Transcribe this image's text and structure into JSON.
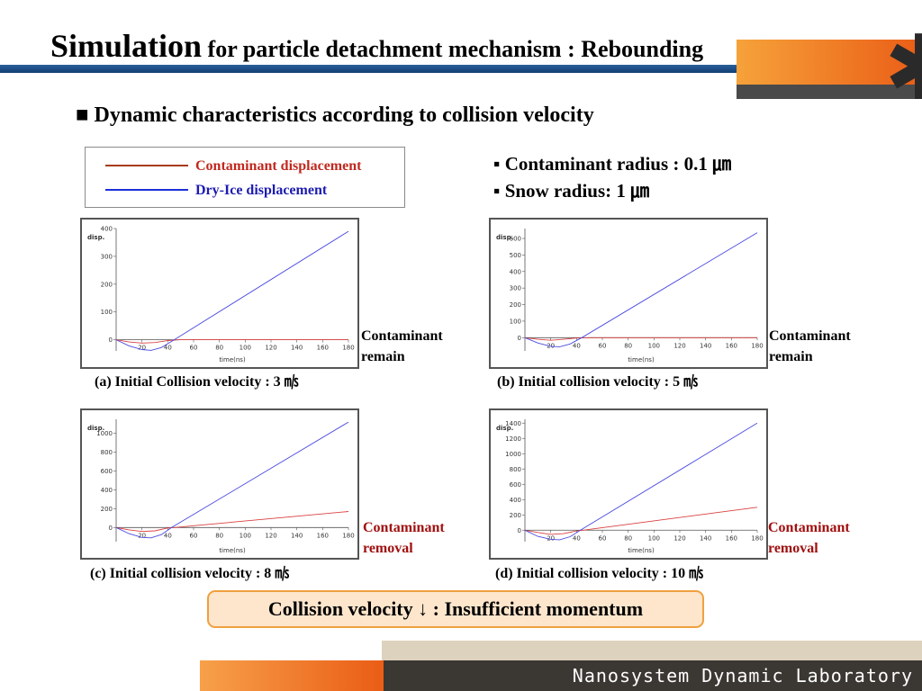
{
  "title": {
    "main": "Simulation",
    "rest": " for particle detachment mechanism : Rebounding"
  },
  "logo": {
    "symbol": "✱"
  },
  "subheading": "■ Dynamic characteristics according to collision velocity",
  "legend": {
    "items": [
      {
        "label": "Contaminant displacement",
        "color": "#c0281e",
        "line_color": "#a83a14"
      },
      {
        "label": "Dry-Ice displacement",
        "color": "#1c1cb0",
        "line_color": "#1c2fd8"
      }
    ]
  },
  "params": {
    "contaminant": "▪ Contaminant radius : 0.1 ㎛",
    "snow": "▪ Snow radius: 1 ㎛"
  },
  "plots": [
    {
      "caption": "(a) Initial Collision velocity : 3 ㎧",
      "outcome_line1": "Contaminant",
      "outcome_line2": "remain"
    },
    {
      "caption": "(b) Initial collision velocity : 5 ㎧",
      "outcome_line1": "Contaminant",
      "outcome_line2": "remain"
    },
    {
      "caption": "(c) Initial collision velocity : 8 ㎧",
      "outcome_line1": "Contaminant",
      "outcome_line2": "removal"
    },
    {
      "caption": "(d) Initial collision velocity : 10 ㎧",
      "outcome_line1": "Contaminant",
      "outcome_line2": "removal"
    }
  ],
  "chart_data": [
    {
      "type": "line",
      "ylabel": "disp.",
      "xlabel": "time(ns)",
      "xlim": [
        0,
        180
      ],
      "ylim": [
        -40,
        400
      ],
      "xticks": [
        20,
        40,
        60,
        80,
        100,
        120,
        140,
        160,
        180
      ],
      "yticks": [
        0,
        100,
        200,
        300,
        400
      ],
      "series": [
        {
          "color": "#d94040",
          "points": [
            [
              0,
              0
            ],
            [
              10,
              -8
            ],
            [
              20,
              -12
            ],
            [
              30,
              -10
            ],
            [
              40,
              -3
            ],
            [
              50,
              0
            ],
            [
              180,
              0
            ]
          ]
        },
        {
          "color": "#4a4ae0",
          "points": [
            [
              0,
              0
            ],
            [
              10,
              -22
            ],
            [
              20,
              -35
            ],
            [
              27,
              -38
            ],
            [
              35,
              -28
            ],
            [
              45,
              0
            ],
            [
              180,
              390
            ]
          ]
        }
      ]
    },
    {
      "type": "line",
      "ylabel": "disp.",
      "xlabel": "time(ns)",
      "xlim": [
        0,
        180
      ],
      "ylim": [
        -80,
        660
      ],
      "xticks": [
        20,
        40,
        60,
        80,
        100,
        120,
        140,
        160,
        180
      ],
      "yticks": [
        0,
        100,
        200,
        300,
        400,
        500,
        600
      ],
      "series": [
        {
          "color": "#d94040",
          "points": [
            [
              0,
              0
            ],
            [
              10,
              -10
            ],
            [
              20,
              -16
            ],
            [
              30,
              -10
            ],
            [
              40,
              -2
            ],
            [
              50,
              0
            ],
            [
              180,
              0
            ]
          ]
        },
        {
          "color": "#4a4ae0",
          "points": [
            [
              0,
              0
            ],
            [
              10,
              -32
            ],
            [
              20,
              -52
            ],
            [
              27,
              -55
            ],
            [
              35,
              -38
            ],
            [
              44,
              0
            ],
            [
              180,
              635
            ]
          ]
        }
      ]
    },
    {
      "type": "line",
      "ylabel": "disp.",
      "xlabel": "time(ns)",
      "xlim": [
        0,
        180
      ],
      "ylim": [
        -150,
        1150
      ],
      "xticks": [
        20,
        40,
        60,
        80,
        100,
        120,
        140,
        160,
        180
      ],
      "yticks": [
        0,
        200,
        400,
        600,
        800,
        1000
      ],
      "series": [
        {
          "color": "#d94040",
          "points": [
            [
              0,
              0
            ],
            [
              10,
              -25
            ],
            [
              20,
              -42
            ],
            [
              30,
              -35
            ],
            [
              40,
              -5
            ],
            [
              45,
              0
            ],
            [
              180,
              170
            ]
          ]
        },
        {
          "color": "#4a4ae0",
          "points": [
            [
              0,
              0
            ],
            [
              10,
              -65
            ],
            [
              20,
              -105
            ],
            [
              27,
              -110
            ],
            [
              35,
              -75
            ],
            [
              43,
              0
            ],
            [
              180,
              1120
            ]
          ]
        }
      ]
    },
    {
      "type": "line",
      "ylabel": "disp.",
      "xlabel": "time(ns)",
      "xlim": [
        0,
        180
      ],
      "ylim": [
        -150,
        1450
      ],
      "xticks": [
        20,
        40,
        60,
        80,
        100,
        120,
        140,
        160,
        180
      ],
      "yticks": [
        0,
        200,
        400,
        600,
        800,
        1000,
        1200,
        1400
      ],
      "series": [
        {
          "color": "#d94040",
          "points": [
            [
              0,
              0
            ],
            [
              10,
              -30
            ],
            [
              20,
              -55
            ],
            [
              30,
              -45
            ],
            [
              40,
              -10
            ],
            [
              45,
              0
            ],
            [
              180,
              300
            ]
          ]
        },
        {
          "color": "#4a4ae0",
          "points": [
            [
              0,
              0
            ],
            [
              10,
              -80
            ],
            [
              20,
              -120
            ],
            [
              27,
              -125
            ],
            [
              35,
              -85
            ],
            [
              43,
              0
            ],
            [
              180,
              1400
            ]
          ]
        }
      ]
    }
  ],
  "conclusion": "Collision velocity ↓ : Insufficient momentum",
  "footer": {
    "lab": "Nanosystem Dynamic Laboratory"
  }
}
